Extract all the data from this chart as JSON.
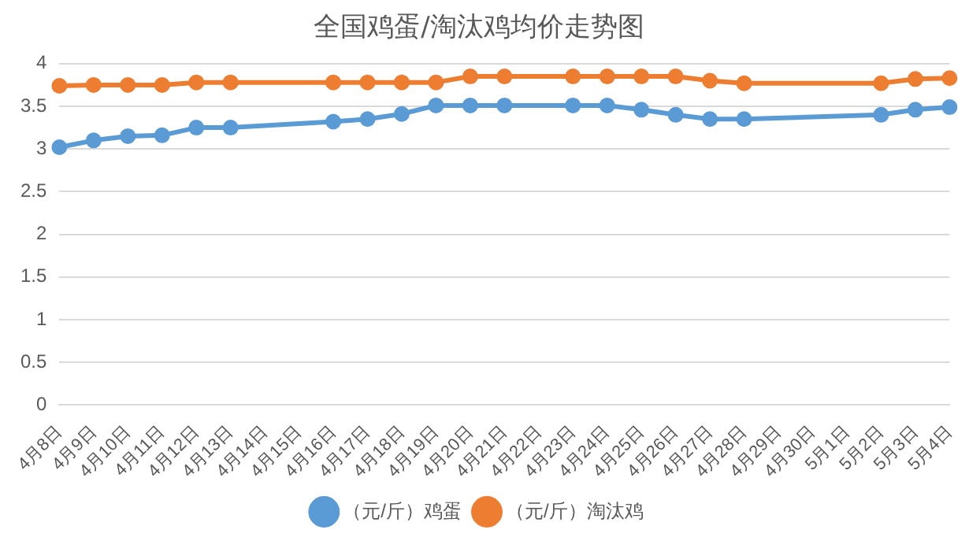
{
  "chart_data": {
    "type": "line",
    "title": "全国鸡蛋/淘汰鸡均价走势图",
    "categories": [
      "4月8日",
      "4月9日",
      "4月10日",
      "4月11日",
      "4月12日",
      "4月13日",
      "4月14日",
      "4月15日",
      "4月16日",
      "4月17日",
      "4月18日",
      "4月19日",
      "4月20日",
      "4月21日",
      "4月22日",
      "4月23日",
      "4月24日",
      "4月25日",
      "4月26日",
      "4月27日",
      "4月28日",
      "4月29日",
      "4月30日",
      "5月1日",
      "5月2日",
      "5月3日",
      "5月4日"
    ],
    "series": [
      {
        "name": "（元/斤）鸡蛋",
        "color": "#5b9bd5",
        "values": [
          3.02,
          3.1,
          3.15,
          3.16,
          3.25,
          3.25,
          null,
          null,
          3.32,
          3.35,
          3.41,
          3.51,
          3.51,
          3.51,
          null,
          3.51,
          3.51,
          3.46,
          3.4,
          3.35,
          3.35,
          null,
          null,
          null,
          3.4,
          3.46,
          3.49
        ]
      },
      {
        "name": "（元/斤）淘汰鸡",
        "color": "#ed7d31",
        "values": [
          3.74,
          3.75,
          3.75,
          3.75,
          3.78,
          3.78,
          null,
          null,
          3.78,
          3.78,
          3.78,
          3.78,
          3.85,
          3.85,
          null,
          3.85,
          3.85,
          3.85,
          3.85,
          3.8,
          3.77,
          null,
          null,
          null,
          3.77,
          3.82,
          3.83
        ]
      }
    ],
    "ylim": [
      0,
      4
    ],
    "yticks": [
      0,
      0.5,
      1,
      1.5,
      2,
      2.5,
      3,
      3.5,
      4
    ],
    "grid": "y",
    "legend": "bottom",
    "marker": "circle",
    "line_style": "solid"
  }
}
